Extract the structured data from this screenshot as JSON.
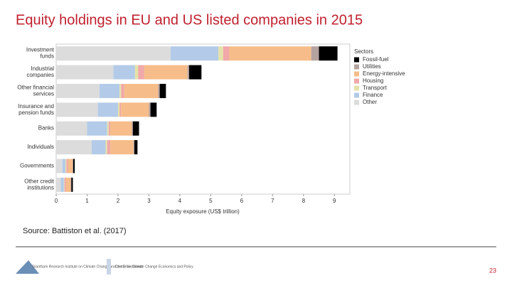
{
  "slide_title": "Equity holdings in EU and US listed companies in 2015",
  "source": "Source: Battiston et al. (2017)",
  "logos": [
    "Grantham Research Institute on Climate Change and the Environment",
    "Centre for Climate Change Economics and Policy"
  ],
  "page_number": "23",
  "chart_data": {
    "type": "stacked-bar-horizontal",
    "x_label": "Equity exposure (US$ trillion)",
    "legend_title": "Sectors",
    "categories": [
      "Investment\nfunds",
      "Industrial\ncompanies",
      "Other financial\nservices",
      "Insurance and\npension funds",
      "Banks",
      "Individuals",
      "Governments",
      "Other credit\ninstitutions"
    ],
    "series": [
      {
        "name": "Other",
        "color": "#dcdcdc",
        "values": [
          3.7,
          1.85,
          1.4,
          1.35,
          1.0,
          1.15,
          0.2,
          0.15
        ]
      },
      {
        "name": "Finance",
        "color": "#b3cbe8",
        "values": [
          1.55,
          0.7,
          0.65,
          0.65,
          0.65,
          0.45,
          0.1,
          0.1
        ]
      },
      {
        "name": "Transport",
        "color": "#e4e2a8",
        "values": [
          0.15,
          0.1,
          0.05,
          0.05,
          0.05,
          0.05,
          0.03,
          0.02
        ]
      },
      {
        "name": "Housing",
        "color": "#f0a8a8",
        "values": [
          0.2,
          0.2,
          0.1,
          0.05,
          0.05,
          0.1,
          0.05,
          0.05
        ]
      },
      {
        "name": "Energy-intensive",
        "color": "#f6bd8a",
        "values": [
          2.65,
          1.4,
          1.1,
          0.9,
          0.7,
          0.75,
          0.15,
          0.15
        ]
      },
      {
        "name": "Utilities",
        "color": "#b5a3a0",
        "values": [
          0.25,
          0.05,
          0.05,
          0.05,
          0.03,
          0.03,
          0.02,
          0.02
        ]
      },
      {
        "name": "Fossil-fuel",
        "color": "#000000",
        "values": [
          0.6,
          0.4,
          0.2,
          0.2,
          0.2,
          0.1,
          0.05,
          0.05
        ]
      }
    ],
    "xlim": [
      0,
      9.5
    ],
    "xticks": [
      0,
      1,
      2,
      3,
      4,
      5,
      6,
      7,
      8,
      9
    ],
    "grid": false
  }
}
